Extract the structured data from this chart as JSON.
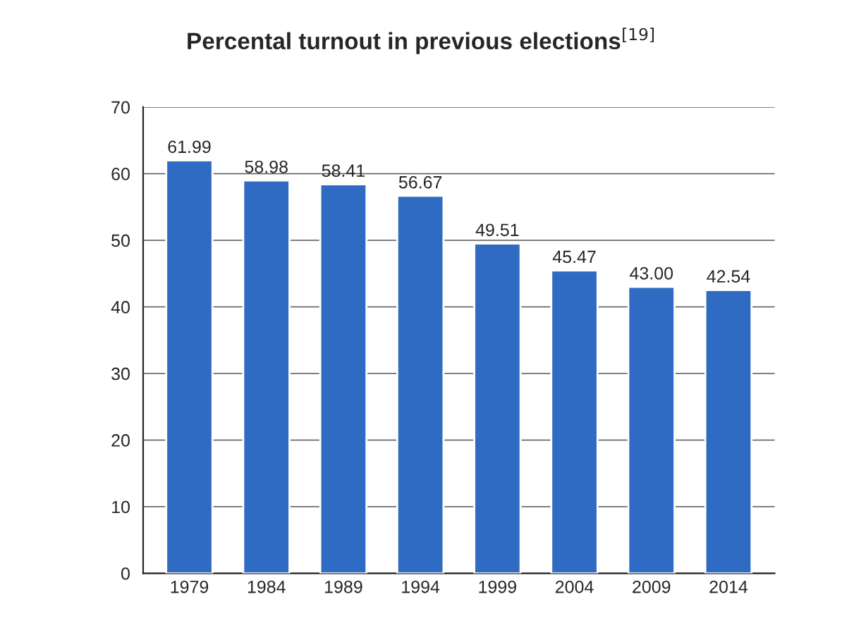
{
  "chart_data": {
    "type": "bar",
    "title": "Percental turnout in previous elections$^{[19]}$",
    "categories": [
      "1979",
      "1984",
      "1989",
      "1994",
      "1999",
      "2004",
      "2009",
      "2014"
    ],
    "values": [
      61.99,
      58.98,
      58.41,
      56.67,
      49.51,
      45.47,
      43.0,
      42.54
    ],
    "value_labels": [
      "61.99",
      "58.98",
      "58.41",
      "56.67",
      "49.51",
      "45.47",
      "43.00",
      "42.54"
    ],
    "color": "#2f6bc2",
    "ylim": [
      0,
      70
    ],
    "yticks": [
      0,
      10,
      20,
      30,
      40,
      50,
      60,
      70
    ],
    "grid": "y",
    "legend": false
  }
}
